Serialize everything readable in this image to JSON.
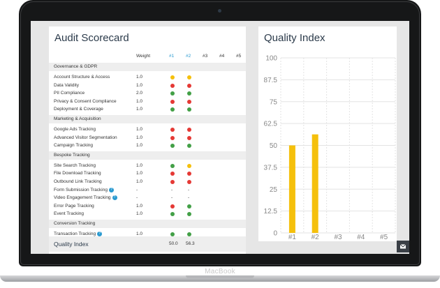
{
  "device": {
    "label": "MacBook"
  },
  "scorecard": {
    "title": "Audit Scorecard",
    "columns": [
      "Weight",
      "#1",
      "#2",
      "#3",
      "#4",
      "#5"
    ],
    "sections": [
      {
        "name": "Governance & GDPR",
        "rows": [
          {
            "label": "Account Structure & Access",
            "weight": "1.0",
            "scores": [
              "yellow",
              "yellow"
            ]
          },
          {
            "label": "Data Validity",
            "weight": "1.0",
            "scores": [
              "red",
              "red"
            ]
          },
          {
            "label": "PII Compliance",
            "weight": "2.0",
            "scores": [
              "green",
              "green"
            ]
          },
          {
            "label": "Privacy & Consent Compliance",
            "weight": "1.0",
            "scores": [
              "red",
              "red"
            ]
          },
          {
            "label": "Deployment & Coverage",
            "weight": "1.0",
            "scores": [
              "green",
              "green"
            ]
          }
        ]
      },
      {
        "name": "Marketing & Acquisition",
        "rows": [
          {
            "label": "Google Ads Tracking",
            "weight": "1.0",
            "scores": [
              "red",
              "red"
            ]
          },
          {
            "label": "Advanced Visitor Segmentation",
            "weight": "1.0",
            "scores": [
              "red",
              "red"
            ]
          },
          {
            "label": "Campaign Tracking",
            "weight": "1.0",
            "scores": [
              "green",
              "green"
            ]
          }
        ]
      },
      {
        "name": "Bespoke Tracking",
        "rows": [
          {
            "label": "Site Search Tracking",
            "weight": "1.0",
            "scores": [
              "green",
              "yellow"
            ]
          },
          {
            "label": "File Download Tracking",
            "weight": "1.0",
            "scores": [
              "red",
              "red"
            ]
          },
          {
            "label": "Outbound Link Tracking",
            "weight": "1.0",
            "scores": [
              "red",
              "red"
            ]
          },
          {
            "label": "Form Submission Tracking",
            "weight": "-",
            "info": "?",
            "scores": [
              "-",
              "-"
            ]
          },
          {
            "label": "Video Engagement Tracking",
            "weight": "-",
            "info": "?",
            "scores": [
              "-",
              "-"
            ]
          },
          {
            "label": "Error Page Tracking",
            "weight": "1.0",
            "scores": [
              "red",
              "green"
            ]
          },
          {
            "label": "Event Tracking",
            "weight": "1.0",
            "scores": [
              "green",
              "green"
            ]
          }
        ]
      },
      {
        "name": "Conversion Tracking",
        "rows": [
          {
            "label": "Transaction Tracking",
            "weight": "1.0",
            "info": "?",
            "scores": [
              "green",
              "green"
            ]
          },
          {
            "label": "Goal Setup",
            "weight": "1.0",
            "scores": [
              "yellow",
              "green"
            ]
          }
        ]
      }
    ],
    "quality": {
      "label": "Quality Index",
      "values": [
        "50.0",
        "56.3"
      ]
    },
    "colors": {
      "red": "#e53935",
      "yellow": "#f5c00c",
      "green": "#43a047"
    }
  },
  "quality_chart": {
    "title": "Quality Index",
    "mail_icon": "mail-icon",
    "chart_data": {
      "type": "bar",
      "categories": [
        "#1",
        "#2",
        "#3",
        "#4",
        "#5"
      ],
      "values": [
        50.0,
        56.3,
        null,
        null,
        null
      ],
      "ylim": [
        0,
        100
      ],
      "yticks": [
        "0",
        "12.5",
        "25",
        "37.5",
        "50",
        "62.5",
        "75",
        "87.5",
        "100"
      ],
      "grid": true,
      "bar_color": "#f5c00c"
    }
  }
}
